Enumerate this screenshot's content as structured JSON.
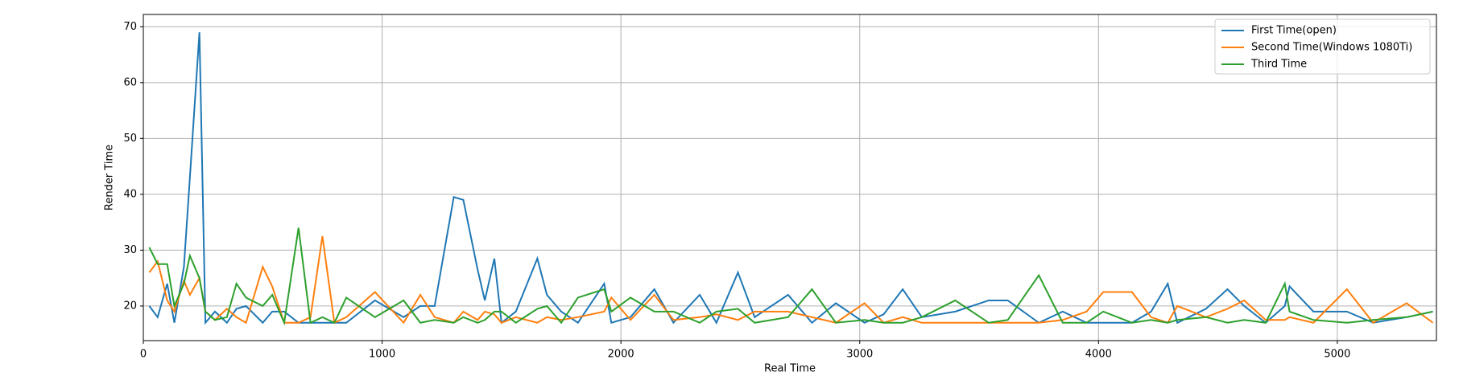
{
  "chart_data": {
    "type": "line",
    "xlabel": "Real Time",
    "ylabel": "Render Time",
    "x": [
      25,
      60,
      100,
      130,
      170,
      195,
      235,
      260,
      300,
      350,
      390,
      430,
      500,
      540,
      590,
      650,
      700,
      750,
      800,
      850,
      970,
      1090,
      1160,
      1220,
      1300,
      1340,
      1400,
      1430,
      1470,
      1500,
      1560,
      1650,
      1690,
      1750,
      1820,
      1930,
      1960,
      2040,
      2140,
      2220,
      2330,
      2400,
      2490,
      2560,
      2700,
      2800,
      2900,
      3020,
      3100,
      3180,
      3260,
      3400,
      3540,
      3620,
      3750,
      3850,
      3950,
      4020,
      4140,
      4220,
      4290,
      4330,
      4450,
      4540,
      4610,
      4700,
      4780,
      4800,
      4900,
      5040,
      5150,
      5290,
      5400
    ],
    "series": [
      {
        "name": "First Time(open)",
        "color": "#1f77b4",
        "values": [
          20,
          18,
          24,
          17,
          27,
          43,
          69,
          17,
          19,
          17,
          19.5,
          20,
          17,
          19,
          19,
          17,
          17,
          17,
          17,
          17,
          21,
          18,
          20,
          20,
          39.5,
          39,
          26.5,
          21,
          28.5,
          17,
          19,
          28.5,
          22,
          19,
          17,
          24,
          17,
          18,
          23,
          17,
          22,
          17,
          26,
          18,
          22,
          17,
          20.5,
          17,
          18.5,
          23,
          18,
          19,
          21,
          21,
          17,
          19,
          17,
          17,
          17,
          19,
          24,
          17,
          19.5,
          23,
          20,
          17,
          20,
          23.5,
          19,
          19,
          17,
          18,
          19
        ]
      },
      {
        "name": "Second Time(Windows 1080Ti)",
        "color": "#ff7f0e",
        "values": [
          26,
          28,
          21,
          19,
          24.5,
          22,
          25,
          19,
          17.5,
          19.5,
          18,
          17,
          27,
          23.5,
          17,
          17,
          18,
          32.5,
          17,
          18,
          22.5,
          17,
          22,
          18,
          17,
          19,
          17.5,
          19,
          18.5,
          17,
          18,
          17,
          18,
          17.5,
          18,
          19,
          21.5,
          17.5,
          22,
          17.5,
          18,
          18.5,
          17.5,
          19,
          19,
          18,
          17,
          20.5,
          17,
          18,
          17,
          17,
          17,
          17,
          17,
          17.5,
          19,
          22.5,
          22.5,
          18,
          17,
          20,
          18,
          19.5,
          21,
          17.5,
          17.5,
          18,
          17,
          23,
          17,
          20.5,
          17
        ]
      },
      {
        "name": "Third Time",
        "color": "#2ca02c",
        "values": [
          30.5,
          27.5,
          27.5,
          20,
          24,
          29,
          25,
          19,
          17.5,
          18,
          24,
          21.5,
          20,
          22,
          17,
          34,
          17,
          18,
          17,
          21.5,
          18,
          21,
          17,
          17.5,
          17,
          18,
          17,
          17.5,
          19,
          19,
          17,
          19.5,
          20,
          17,
          21.5,
          23,
          19,
          21.5,
          19,
          19,
          17,
          19,
          19.5,
          17,
          18,
          23,
          17,
          17.5,
          17,
          17,
          18,
          21,
          17,
          17.5,
          25.5,
          17,
          17,
          19,
          17,
          17.5,
          17,
          17.5,
          18,
          17,
          17.5,
          17,
          24,
          19,
          17.5,
          17,
          17.5,
          18,
          19
        ]
      }
    ],
    "xlim": [
      0,
      5415
    ],
    "ylim": [
      13.8,
      72.2
    ],
    "xticks": [
      0,
      1000,
      2000,
      3000,
      4000,
      5000
    ],
    "yticks": [
      20,
      30,
      40,
      50,
      60,
      70
    ],
    "grid": true,
    "legend": "upper right"
  }
}
